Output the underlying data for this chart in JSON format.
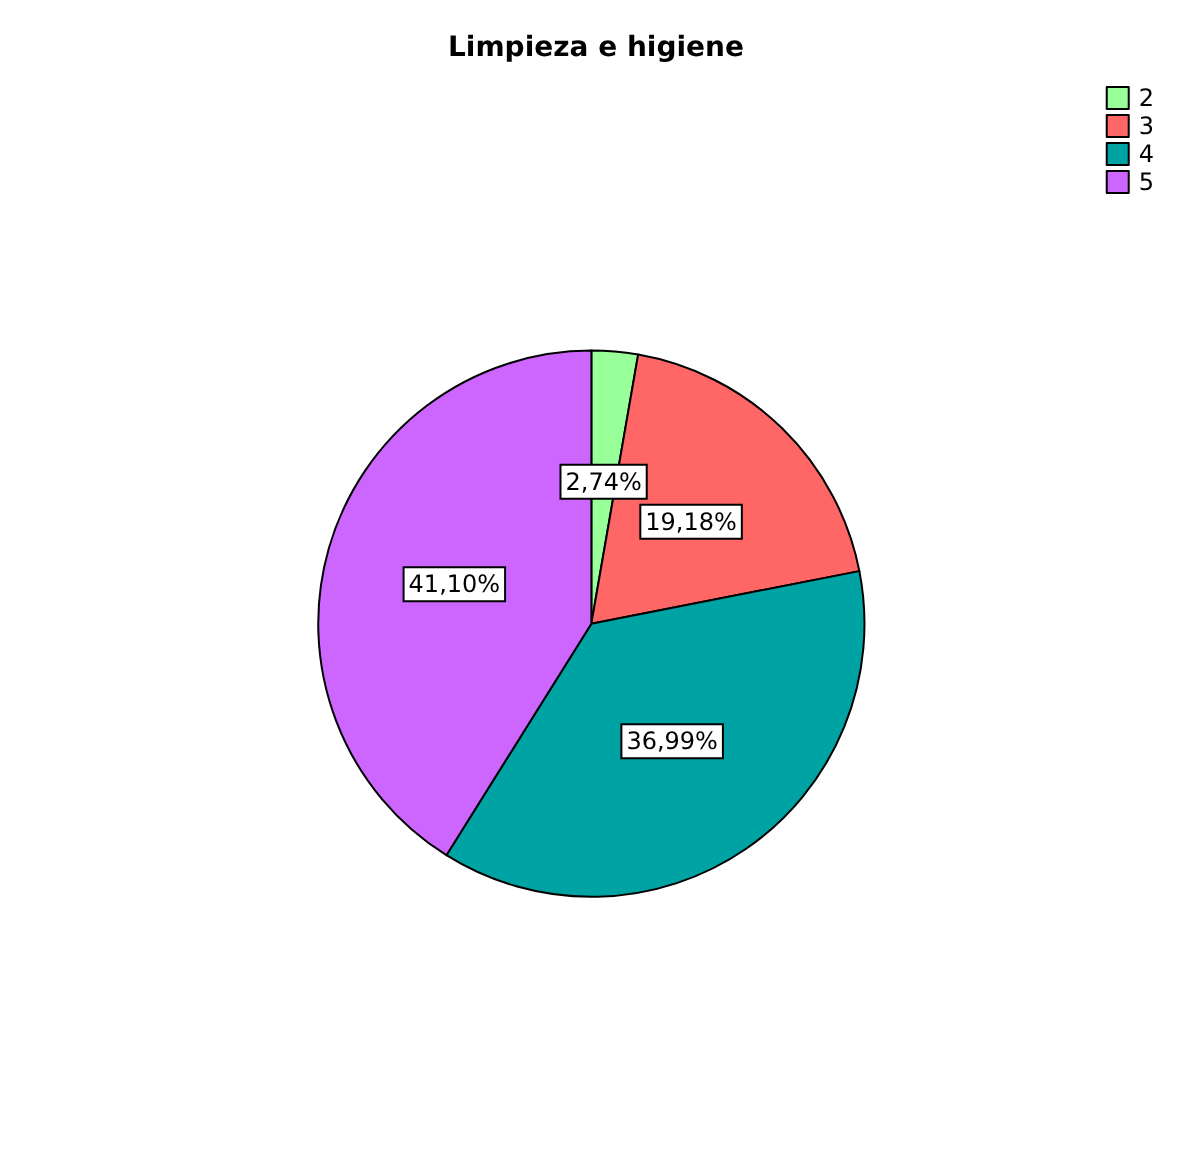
{
  "chart_data": {
    "type": "pie",
    "title": "Limpieza e higiene",
    "categories": [
      "2",
      "3",
      "4",
      "5"
    ],
    "values": [
      2.74,
      19.18,
      36.99,
      41.1
    ],
    "colors": [
      "#99ff99",
      "#ff6666",
      "#00a3a3",
      "#cc66ff"
    ],
    "value_labels": [
      "2,74%",
      "19,18%",
      "36,99%",
      "41,10%"
    ],
    "legend": "top right"
  }
}
